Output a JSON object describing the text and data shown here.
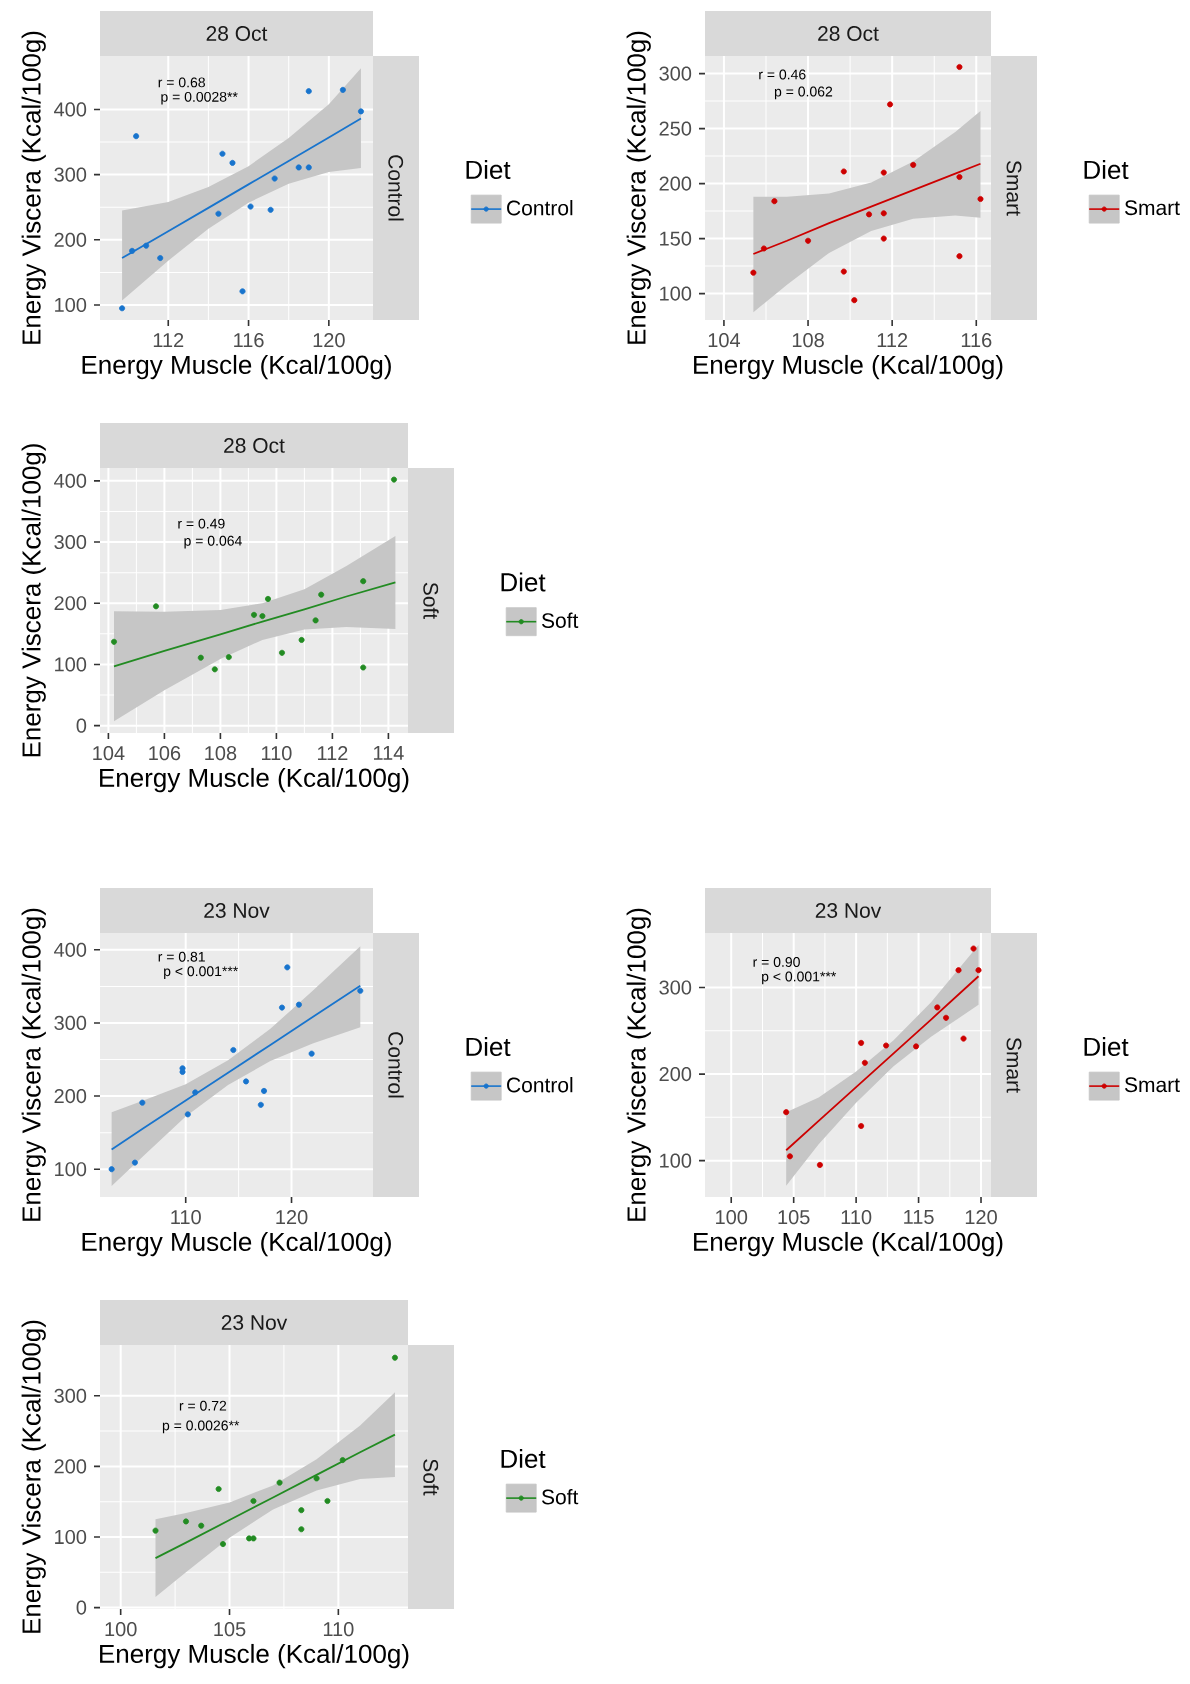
{
  "chart_data": [
    {
      "type": "scatter",
      "title": "28 Oct",
      "xlabel": "Energy Muscle (Kcal/100g)",
      "ylabel": "Energy Viscera (Kcal/100g)",
      "legend_title": "Diet",
      "annotations": [
        "r = 0.68",
        "p = 0.0028**",
        "Control"
      ],
      "xlim": [
        108.6,
        122.2
      ],
      "ylim": [
        77,
        482
      ],
      "xticks": [
        112,
        116,
        120
      ],
      "yticks": [
        100,
        200,
        300,
        400
      ],
      "grid": true,
      "legend": "right",
      "marker": "circle",
      "series": [
        {
          "name": "Control",
          "color": "#1874cd",
          "x": [
            109.7,
            110.2,
            110.4,
            110.9,
            111.6,
            114.5,
            114.7,
            115.2,
            115.7,
            116.1,
            117.1,
            117.3,
            118.5,
            119.0,
            119.0,
            120.7,
            121.6
          ],
          "values": [
            95,
            183,
            359,
            191,
            172,
            240,
            332,
            318,
            121,
            251,
            246,
            294,
            311,
            311,
            428,
            430,
            397
          ]
        },
        {
          "type": "line",
          "marker": "none",
          "color": "#1874cd",
          "x": [
            109.7,
            112,
            114,
            116,
            118,
            120,
            121.6
          ],
          "values": [
            172,
            213,
            249,
            285,
            321,
            357,
            386
          ],
          "lower": [
            107,
            168,
            217,
            257,
            286,
            304,
            310
          ],
          "upper": [
            245,
            258,
            281,
            313,
            356,
            408,
            463
          ]
        }
      ]
    },
    {
      "type": "scatter",
      "title": "28 Oct",
      "xlabel": "Energy Muscle (Kcal/100g)",
      "ylabel": "Energy Viscera (Kcal/100g)",
      "legend_title": "Diet",
      "annotations": [
        "r = 0.46",
        "p = 0.062",
        "Smart"
      ],
      "xlim": [
        103.1,
        116.7
      ],
      "ylim": [
        76,
        316
      ],
      "xticks": [
        104,
        108,
        112,
        116
      ],
      "yticks": [
        100,
        150,
        200,
        250,
        300
      ],
      "grid": true,
      "legend": "right",
      "marker": "circle",
      "series": [
        {
          "name": "Smart",
          "color": "#cd0000",
          "x": [
            105.4,
            105.9,
            106.4,
            108.0,
            109.7,
            109.7,
            110.2,
            110.9,
            111.6,
            111.6,
            111.6,
            111.9,
            113.0,
            115.2,
            115.2,
            115.2,
            116.2
          ],
          "values": [
            119,
            141,
            184,
            148,
            211,
            120,
            94,
            172,
            173,
            150,
            210,
            272,
            217,
            306,
            206,
            134,
            186
          ]
        },
        {
          "type": "line",
          "marker": "none",
          "color": "#cd0000",
          "x": [
            105.4,
            107,
            109,
            111,
            113,
            115,
            116.2
          ],
          "values": [
            136,
            148,
            164,
            179,
            194,
            209,
            218
          ],
          "lower": [
            83,
            108,
            137,
            157,
            168,
            171,
            169
          ],
          "upper": [
            188,
            188,
            191,
            201,
            220,
            247,
            266
          ]
        }
      ]
    },
    {
      "type": "scatter",
      "title": "28 Oct",
      "xlabel": "Energy Muscle (Kcal/100g)",
      "ylabel": "Energy Viscera (Kcal/100g)",
      "legend_title": "Diet",
      "annotations": [
        "r = 0.49",
        "p = 0.064",
        "Soft"
      ],
      "xlim": [
        103.7,
        114.7
      ],
      "ylim": [
        -12,
        421
      ],
      "xticks": [
        104,
        106,
        108,
        110,
        112,
        114
      ],
      "yticks": [
        0,
        100,
        200,
        300,
        400
      ],
      "grid": true,
      "legend": "right",
      "marker": "circle",
      "series": [
        {
          "name": "Soft",
          "color": "#228b22",
          "x": [
            104.2,
            105.7,
            107.3,
            107.8,
            108.3,
            109.2,
            109.5,
            109.7,
            110.2,
            110.9,
            111.4,
            111.6,
            113.1,
            113.1,
            114.2
          ],
          "values": [
            137,
            195,
            111,
            92,
            112,
            181,
            179,
            207,
            119,
            140,
            172,
            214,
            236,
            95,
            402
          ]
        },
        {
          "type": "line",
          "marker": "none",
          "color": "#228b22",
          "x": [
            104.2,
            106,
            108,
            109.5,
            111,
            112.5,
            114.25
          ],
          "values": [
            97,
            122,
            149,
            170,
            190,
            211,
            234
          ],
          "lower": [
            7,
            58,
            109,
            140,
            157,
            161,
            158
          ],
          "upper": [
            187,
            186,
            189,
            200,
            223,
            261,
            310
          ]
        }
      ]
    },
    {
      "type": "scatter",
      "title": "23 Nov",
      "xlabel": "Energy Muscle (Kcal/100g)",
      "ylabel": "Energy Viscera (Kcal/100g)",
      "legend_title": "Diet",
      "annotations": [
        "r = 0.81",
        "p < 0.001***",
        "Control"
      ],
      "xlim": [
        101.9,
        127.7
      ],
      "ylim": [
        62,
        423
      ],
      "xticks": [
        110,
        120
      ],
      "yticks": [
        100,
        200,
        300,
        400
      ],
      "grid": true,
      "legend": "right",
      "marker": "circle",
      "series": [
        {
          "name": "Control",
          "color": "#1874cd",
          "x": [
            103.0,
            105.2,
            105.9,
            109.7,
            109.7,
            110.2,
            110.9,
            114.5,
            115.7,
            117.1,
            117.4,
            119.1,
            119.6,
            120.7,
            121.9,
            126.5
          ],
          "values": [
            100,
            109,
            191,
            238,
            233,
            175,
            205,
            263,
            220,
            188,
            207,
            321,
            376,
            325,
            258,
            344
          ]
        },
        {
          "type": "line",
          "marker": "none",
          "color": "#1874cd",
          "x": [
            103,
            106,
            110,
            114,
            118,
            122,
            126.5
          ],
          "values": [
            127,
            156,
            194,
            232,
            270,
            308,
            351
          ],
          "lower": [
            77,
            118,
            172,
            215,
            248,
            272,
            294
          ],
          "upper": [
            178,
            194,
            216,
            249,
            292,
            344,
            405
          ]
        }
      ]
    },
    {
      "type": "scatter",
      "title": "23 Nov",
      "xlabel": "Energy Muscle (Kcal/100g)",
      "ylabel": "Energy Viscera (Kcal/100g)",
      "legend_title": "Diet",
      "annotations": [
        "r = 0.90",
        "p < 0.001***",
        "Smart"
      ],
      "xlim": [
        97.9,
        120.8
      ],
      "ylim": [
        58,
        363
      ],
      "xticks": [
        100,
        105,
        110,
        115,
        120
      ],
      "yticks": [
        100,
        200,
        300
      ],
      "grid": true,
      "legend": "right",
      "marker": "circle",
      "series": [
        {
          "name": "Smart",
          "color": "#cd0000",
          "x": [
            104.4,
            104.7,
            107.1,
            110.4,
            110.4,
            110.7,
            112.4,
            114.8,
            116.5,
            117.2,
            118.2,
            118.6,
            119.4,
            119.8
          ],
          "values": [
            156,
            105,
            95,
            236,
            140,
            213,
            233,
            232,
            277,
            265,
            320,
            241,
            345,
            320
          ]
        },
        {
          "type": "line",
          "marker": "none",
          "color": "#cd0000",
          "x": [
            104.4,
            107,
            110,
            113,
            116,
            119.8
          ],
          "values": [
            112,
            146,
            185,
            224,
            263,
            313
          ],
          "lower": [
            71,
            119,
            167,
            209,
            243,
            280
          ],
          "upper": [
            156,
            173,
            203,
            239,
            283,
            349
          ]
        }
      ]
    },
    {
      "type": "scatter",
      "title": "23 Nov",
      "xlabel": "Energy Muscle (Kcal/100g)",
      "ylabel": "Energy Viscera (Kcal/100g)",
      "legend_title": "Diet",
      "annotations": [
        "r = 0.72",
        "p = 0.0026**",
        "Soft"
      ],
      "xlim": [
        99.05,
        113.2
      ],
      "ylim": [
        -2,
        372
      ],
      "xticks": [
        100,
        105,
        110
      ],
      "yticks": [
        0,
        100,
        200,
        300
      ],
      "grid": true,
      "legend": "right",
      "marker": "circle",
      "series": [
        {
          "name": "Soft",
          "color": "#228b22",
          "x": [
            101.6,
            103.0,
            103.7,
            104.5,
            104.7,
            105.9,
            106.1,
            106.1,
            107.3,
            108.3,
            108.3,
            109.0,
            109.5,
            110.2,
            112.6
          ],
          "values": [
            109,
            122,
            116,
            168,
            90,
            98,
            98,
            151,
            177,
            138,
            111,
            183,
            151,
            209,
            354
          ]
        },
        {
          "type": "line",
          "marker": "none",
          "color": "#228b22",
          "x": [
            101.6,
            103,
            105,
            107,
            109,
            111,
            112.6
          ],
          "values": [
            70,
            92,
            124,
            156,
            188,
            220,
            245
          ],
          "lower": [
            15,
            50,
            99,
            139,
            166,
            182,
            185
          ],
          "upper": [
            125,
            134,
            149,
            173,
            210,
            258,
            305
          ]
        }
      ]
    }
  ]
}
